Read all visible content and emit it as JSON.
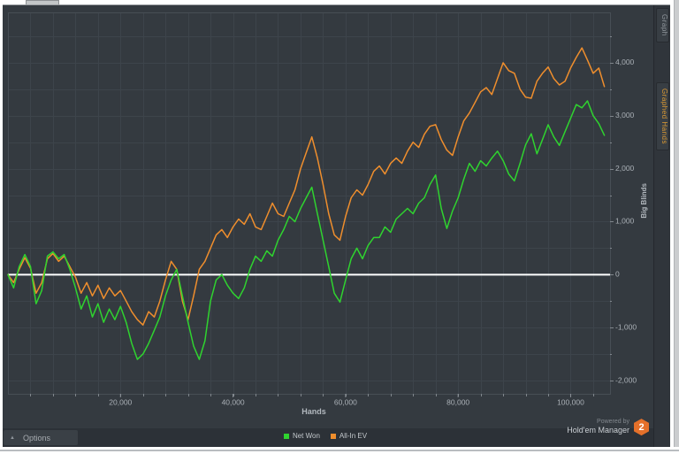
{
  "side_tabs": [
    {
      "label": "Graph",
      "active": false
    },
    {
      "label": "Graphed Hands",
      "active": true
    }
  ],
  "options_bar": {
    "label": "Options",
    "collapse_icon": "▲"
  },
  "footer_brand": {
    "powered_by": "Powered by",
    "brand": "Hold'em Manager",
    "logo_number": "2",
    "logo_color": "#e4702a"
  },
  "chart_data": {
    "type": "line",
    "title": "",
    "xlabel": "Hands",
    "ylabel": "Big Blinds",
    "xlim": [
      0,
      107000
    ],
    "ylim": [
      -2250,
      4950
    ],
    "grid": "on",
    "legend_position": "bottom-center",
    "zero_line_color": "#ffffff",
    "x_minor_step": 4000,
    "y_minor_step": 500,
    "x_ticks": [
      {
        "value": 20000,
        "label": "20,000"
      },
      {
        "value": 40000,
        "label": "40,000"
      },
      {
        "value": 60000,
        "label": "60,000"
      },
      {
        "value": 80000,
        "label": "80,000"
      },
      {
        "value": 100000,
        "label": "100,000"
      }
    ],
    "y_ticks": [
      {
        "value": 4000,
        "label": "4,000"
      },
      {
        "value": 3000,
        "label": "3,000"
      },
      {
        "value": 2000,
        "label": "2,000"
      },
      {
        "value": 1000,
        "label": "1,000"
      },
      {
        "value": 0,
        "label": "0"
      },
      {
        "value": -1000,
        "label": "-1,000"
      },
      {
        "value": -2000,
        "label": "-2,000"
      }
    ],
    "x_start": 0,
    "x_step": 1000,
    "series": [
      {
        "name": "Net Won",
        "color": "#2fd32f",
        "values": [
          0,
          -250,
          150,
          380,
          150,
          -550,
          -300,
          350,
          430,
          300,
          380,
          100,
          -250,
          -650,
          -400,
          -800,
          -550,
          -900,
          -650,
          -850,
          -600,
          -900,
          -1300,
          -1600,
          -1500,
          -1300,
          -1050,
          -800,
          -400,
          -100,
          100,
          -400,
          -900,
          -1350,
          -1600,
          -1250,
          -500,
          -100,
          0,
          -200,
          -350,
          -450,
          -250,
          100,
          350,
          250,
          450,
          350,
          650,
          850,
          1100,
          1000,
          1250,
          1450,
          1650,
          1150,
          650,
          150,
          -350,
          -520,
          -100,
          300,
          500,
          300,
          550,
          700,
          700,
          900,
          800,
          1050,
          1150,
          1250,
          1150,
          1350,
          1450,
          1700,
          1880,
          1250,
          870,
          1200,
          1450,
          1800,
          2100,
          1950,
          2150,
          2050,
          2200,
          2330,
          2150,
          1900,
          1770,
          2100,
          2450,
          2660,
          2280,
          2550,
          2830,
          2600,
          2440,
          2700,
          2950,
          3210,
          3150,
          3280,
          3000,
          2850,
          2630
        ]
      },
      {
        "name": "All-In EV",
        "color": "#ef8e2d",
        "values": [
          0,
          -150,
          100,
          320,
          120,
          -350,
          -150,
          300,
          400,
          250,
          350,
          150,
          -50,
          -350,
          -150,
          -400,
          -200,
          -450,
          -250,
          -400,
          -300,
          -500,
          -700,
          -850,
          -950,
          -700,
          -800,
          -500,
          -100,
          250,
          100,
          -500,
          -850,
          -400,
          100,
          250,
          500,
          750,
          850,
          700,
          900,
          1050,
          950,
          1150,
          900,
          850,
          1100,
          1350,
          1150,
          1100,
          1350,
          1600,
          2000,
          2300,
          2600,
          2200,
          1700,
          1150,
          750,
          650,
          1100,
          1450,
          1600,
          1500,
          1700,
          1950,
          2050,
          1900,
          2100,
          2200,
          2100,
          2330,
          2500,
          2400,
          2650,
          2800,
          2830,
          2550,
          2350,
          2250,
          2600,
          2900,
          3050,
          3250,
          3450,
          3530,
          3400,
          3700,
          4000,
          3850,
          3800,
          3500,
          3350,
          3330,
          3650,
          3800,
          3920,
          3700,
          3580,
          3650,
          3900,
          4100,
          4280,
          4050,
          3800,
          3900,
          3550
        ]
      }
    ]
  }
}
